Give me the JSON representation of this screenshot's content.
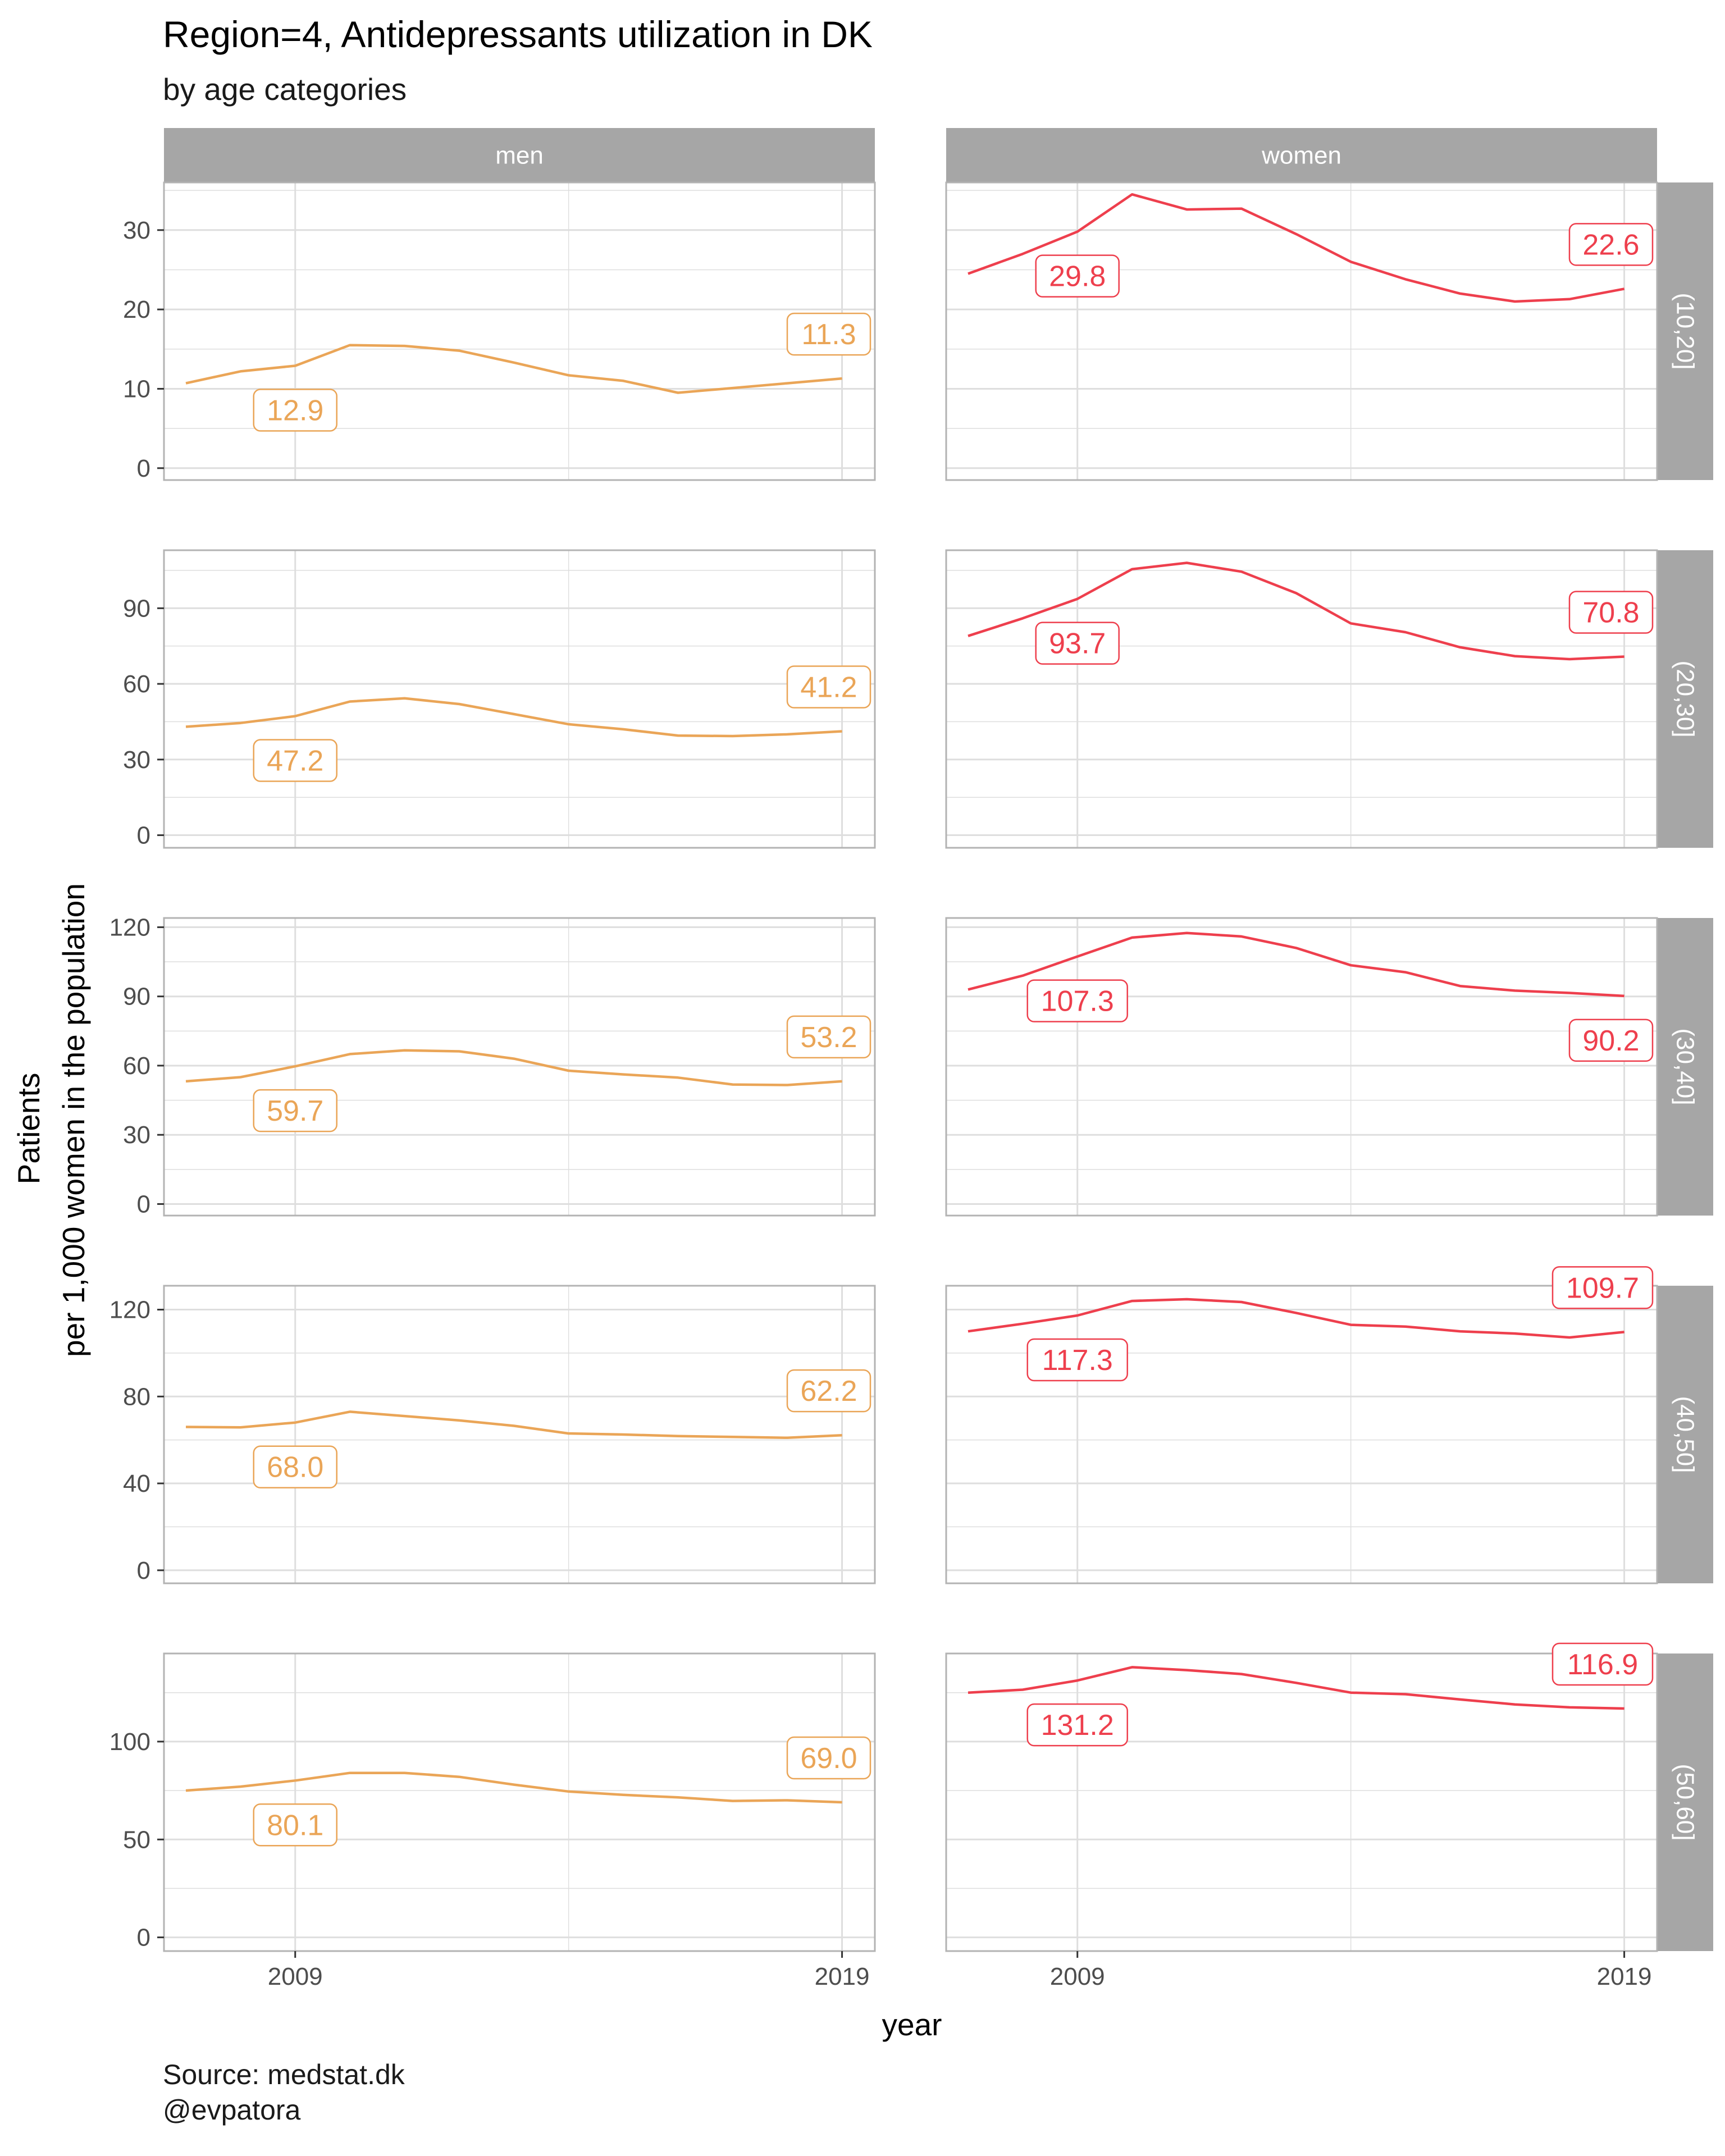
{
  "title": "Region=4, Antidepressants utilization in DK",
  "subtitle": "by age categories",
  "caption_lines": [
    "Source: medstat.dk",
    "@evpatora"
  ],
  "colors": {
    "men": "#EAA557",
    "women": "#EE3F4D",
    "strip": "#A6A6A6",
    "grid": "#DEDEDE",
    "panel_border": "#B3B3B3"
  },
  "chart_data": {
    "type": "line",
    "xlabel": "year",
    "ylabel": [
      "Patients",
      "per 1,000 women in the population"
    ],
    "x": [
      2007,
      2008,
      2009,
      2010,
      2011,
      2012,
      2013,
      2014,
      2015,
      2016,
      2017,
      2018,
      2019
    ],
    "x_ticks": [
      2009,
      2019
    ],
    "xlim": [
      2006.6,
      2019.6
    ],
    "columns": [
      "men",
      "women"
    ],
    "rows": [
      "(10,20]",
      "(20,30]",
      "(30,40]",
      "(40,50]",
      "(50,60]"
    ],
    "panels": [
      {
        "row": "(10,20]",
        "ylim": [
          -1.5,
          36
        ],
        "yticks": [
          0,
          10,
          20,
          30
        ],
        "men": {
          "values": [
            10.7,
            12.2,
            12.9,
            15.5,
            15.4,
            14.8,
            13.3,
            11.7,
            11.0,
            9.5,
            10.1,
            10.7,
            11.3
          ],
          "labels": [
            {
              "x": 2009,
              "value": "12.9"
            },
            {
              "x": 2019,
              "value": "11.3"
            }
          ]
        },
        "women": {
          "values": [
            24.5,
            27.0,
            29.8,
            34.5,
            32.6,
            32.7,
            29.5,
            26.0,
            23.8,
            22.0,
            21.0,
            21.3,
            22.6
          ],
          "labels": [
            {
              "x": 2009,
              "value": "29.8"
            },
            {
              "x": 2019,
              "value": "22.6"
            }
          ]
        }
      },
      {
        "row": "(20,30]",
        "ylim": [
          -5,
          113
        ],
        "yticks": [
          0,
          30,
          60,
          90
        ],
        "men": {
          "values": [
            43.0,
            44.5,
            47.2,
            53.0,
            54.3,
            52.0,
            48.0,
            44.0,
            42.0,
            39.5,
            39.3,
            40.0,
            41.2
          ],
          "labels": [
            {
              "x": 2009,
              "value": "47.2"
            },
            {
              "x": 2019,
              "value": "41.2"
            }
          ]
        },
        "women": {
          "values": [
            79.0,
            86.0,
            93.7,
            105.5,
            108.0,
            104.5,
            96.0,
            84.0,
            80.5,
            74.5,
            71.0,
            69.8,
            70.8
          ],
          "labels": [
            {
              "x": 2009,
              "value": "93.7"
            },
            {
              "x": 2019,
              "value": "70.8"
            }
          ]
        }
      },
      {
        "row": "(30,40]",
        "ylim": [
          -5,
          124
        ],
        "yticks": [
          0,
          30,
          60,
          90,
          120
        ],
        "men": {
          "values": [
            53.2,
            55.0,
            59.7,
            65.0,
            66.6,
            66.2,
            63.0,
            57.8,
            56.2,
            54.8,
            51.8,
            51.6,
            53.2
          ],
          "labels": [
            {
              "x": 2009,
              "value": "59.7"
            },
            {
              "x": 2019,
              "value": "53.2"
            }
          ]
        },
        "women": {
          "values": [
            93.0,
            99.0,
            107.3,
            115.5,
            117.5,
            116.0,
            111.0,
            103.5,
            100.5,
            94.5,
            92.5,
            91.5,
            90.2
          ],
          "labels": [
            {
              "x": 2009,
              "value": "107.3"
            },
            {
              "x": 2019,
              "value": "90.2"
            }
          ]
        }
      },
      {
        "row": "(40,50]",
        "ylim": [
          -6,
          131
        ],
        "yticks": [
          0,
          40,
          80,
          120
        ],
        "men": {
          "values": [
            66.0,
            65.8,
            68.0,
            73.0,
            71.0,
            69.0,
            66.5,
            63.0,
            62.5,
            61.8,
            61.4,
            61.0,
            62.2
          ],
          "labels": [
            {
              "x": 2009,
              "value": "68.0"
            },
            {
              "x": 2019,
              "value": "62.2"
            }
          ]
        },
        "women": {
          "values": [
            110.0,
            113.5,
            117.3,
            124.0,
            124.8,
            123.5,
            118.5,
            113.0,
            112.2,
            110.0,
            109.0,
            107.2,
            109.7
          ],
          "labels": [
            {
              "x": 2009,
              "value": "117.3"
            },
            {
              "x": 2019,
              "value": "109.7"
            }
          ]
        }
      },
      {
        "row": "(50,60]",
        "ylim": [
          -7,
          145
        ],
        "yticks": [
          0,
          50,
          100
        ],
        "men": {
          "values": [
            75.0,
            77.0,
            80.1,
            84.0,
            84.0,
            82.0,
            78.0,
            74.5,
            72.8,
            71.5,
            69.7,
            70.0,
            69.0
          ],
          "labels": [
            {
              "x": 2009,
              "value": "80.1"
            },
            {
              "x": 2019,
              "value": "69.0"
            }
          ]
        },
        "women": {
          "values": [
            125.0,
            126.5,
            131.2,
            138.0,
            136.5,
            134.5,
            130.0,
            125.0,
            124.2,
            121.5,
            119.0,
            117.5,
            116.9
          ],
          "labels": [
            {
              "x": 2009,
              "value": "131.2"
            },
            {
              "x": 2019,
              "value": "116.9"
            }
          ]
        }
      }
    ]
  }
}
